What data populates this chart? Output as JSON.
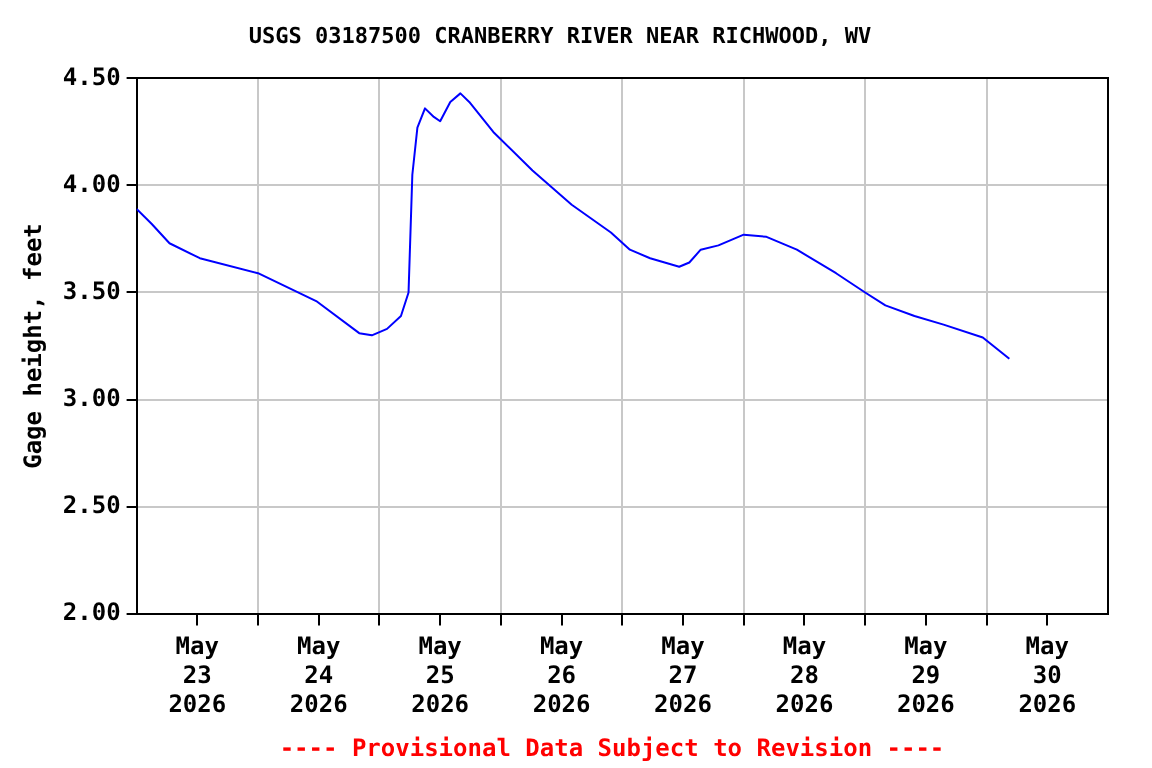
{
  "chart_data": {
    "type": "line",
    "title": "USGS 03187500 CRANBERRY RIVER NEAR RICHWOOD, WV",
    "ylabel": "Gage height, feet",
    "annotations": [
      "---- Provisional Data Subject to Revision ----"
    ],
    "x": [
      "2026-05-23T00:00",
      "2026-05-23T03:00",
      "2026-05-23T06:30",
      "2026-05-23T12:30",
      "2026-05-24T00:00",
      "2026-05-24T11:30",
      "2026-05-24T20:00",
      "2026-05-24T22:30",
      "2026-05-25T01:30",
      "2026-05-25T04:15",
      "2026-05-25T05:45",
      "2026-05-25T06:30",
      "2026-05-25T07:30",
      "2026-05-25T09:00",
      "2026-05-25T10:45",
      "2026-05-25T12:00",
      "2026-05-25T14:00",
      "2026-05-25T16:00",
      "2026-05-25T17:45",
      "2026-05-25T22:30",
      "2026-05-26T06:15",
      "2026-05-26T14:00",
      "2026-05-26T21:45",
      "2026-05-27T01:30",
      "2026-05-27T05:30",
      "2026-05-27T11:15",
      "2026-05-27T13:15",
      "2026-05-27T15:30",
      "2026-05-27T19:00",
      "2026-05-28T00:00",
      "2026-05-28T04:30",
      "2026-05-28T10:30",
      "2026-05-28T18:15",
      "2026-05-29T00:00",
      "2026-05-29T04:00",
      "2026-05-29T09:45",
      "2026-05-29T15:30",
      "2026-05-29T23:15",
      "2026-05-30T04:30"
    ],
    "series": [
      {
        "color": "#0000ff",
        "values": [
          3.89,
          3.82,
          3.73,
          3.66,
          3.59,
          3.46,
          3.31,
          3.3,
          3.33,
          3.39,
          3.5,
          4.05,
          4.27,
          4.36,
          4.32,
          4.3,
          4.39,
          4.43,
          4.39,
          4.25,
          4.07,
          3.91,
          3.78,
          3.7,
          3.66,
          3.62,
          3.64,
          3.7,
          3.72,
          3.77,
          3.76,
          3.7,
          3.59,
          3.5,
          3.44,
          3.39,
          3.35,
          3.29,
          3.19
        ]
      }
    ],
    "xlim": [
      "2026-05-23T00:00",
      "2026-05-31T00:00"
    ],
    "xticks": [
      {
        "value": "2026-05-23T12:00",
        "label": "May 23 2026"
      },
      {
        "value": "2026-05-24T00:00",
        "label": null
      },
      {
        "value": "2026-05-24T12:00",
        "label": "May 24 2026"
      },
      {
        "value": "2026-05-25T00:00",
        "label": null
      },
      {
        "value": "2026-05-25T12:00",
        "label": "May 25 2026"
      },
      {
        "value": "2026-05-26T00:00",
        "label": null
      },
      {
        "value": "2026-05-26T12:00",
        "label": "May 26 2026"
      },
      {
        "value": "2026-05-27T00:00",
        "label": null
      },
      {
        "value": "2026-05-27T12:00",
        "label": "May 27 2026"
      },
      {
        "value": "2026-05-28T00:00",
        "label": null
      },
      {
        "value": "2026-05-28T12:00",
        "label": "May 28 2026"
      },
      {
        "value": "2026-05-29T00:00",
        "label": null
      },
      {
        "value": "2026-05-29T12:00",
        "label": "May 29 2026"
      },
      {
        "value": "2026-05-30T00:00",
        "label": null
      },
      {
        "value": "2026-05-30T12:00",
        "label": "May 30 2026"
      }
    ],
    "ylim": [
      2,
      4.5
    ],
    "yticks": [
      {
        "value": 2,
        "label": "2.00"
      },
      {
        "value": 2.5,
        "label": "2.50"
      },
      {
        "value": 3,
        "label": "3.00"
      },
      {
        "value": 3.5,
        "label": "3.50"
      },
      {
        "value": 4,
        "label": "4.00"
      },
      {
        "value": 4.5,
        "label": "4.50"
      }
    ],
    "grid": true,
    "legend": false,
    "marker": "none",
    "line_style": "solid"
  }
}
